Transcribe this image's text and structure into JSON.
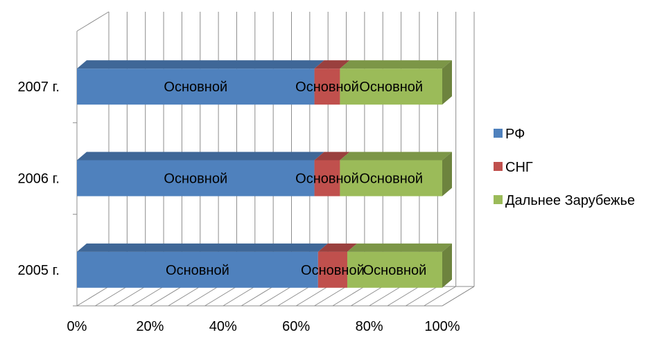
{
  "chart_data": {
    "type": "bar",
    "orientation": "horizontal",
    "stacked": "percent",
    "three_d": true,
    "categories": [
      "2005 г.",
      "2006 г.",
      "2007 г."
    ],
    "series": [
      {
        "name": "РФ",
        "values": [
          66,
          65,
          65
        ],
        "color": "#4F81BD",
        "data_labels": [
          "Основной",
          "Основной",
          "Основной"
        ]
      },
      {
        "name": "СНГ",
        "values": [
          8,
          7,
          7
        ],
        "color": "#C0504D",
        "data_labels": [
          "Основной",
          "Основной",
          "Основной"
        ]
      },
      {
        "name": "Дальнее Зарубежье",
        "values": [
          26,
          28,
          28
        ],
        "color": "#9BBB59",
        "data_labels": [
          "Основной",
          "Основной",
          "Основной"
        ]
      }
    ],
    "x_ticks": [
      "0%",
      "20%",
      "40%",
      "60%",
      "80%",
      "100%"
    ],
    "xlim": [
      0,
      100
    ],
    "grid": true,
    "legend_position": "right",
    "title": "",
    "xlabel": "",
    "ylabel": ""
  }
}
